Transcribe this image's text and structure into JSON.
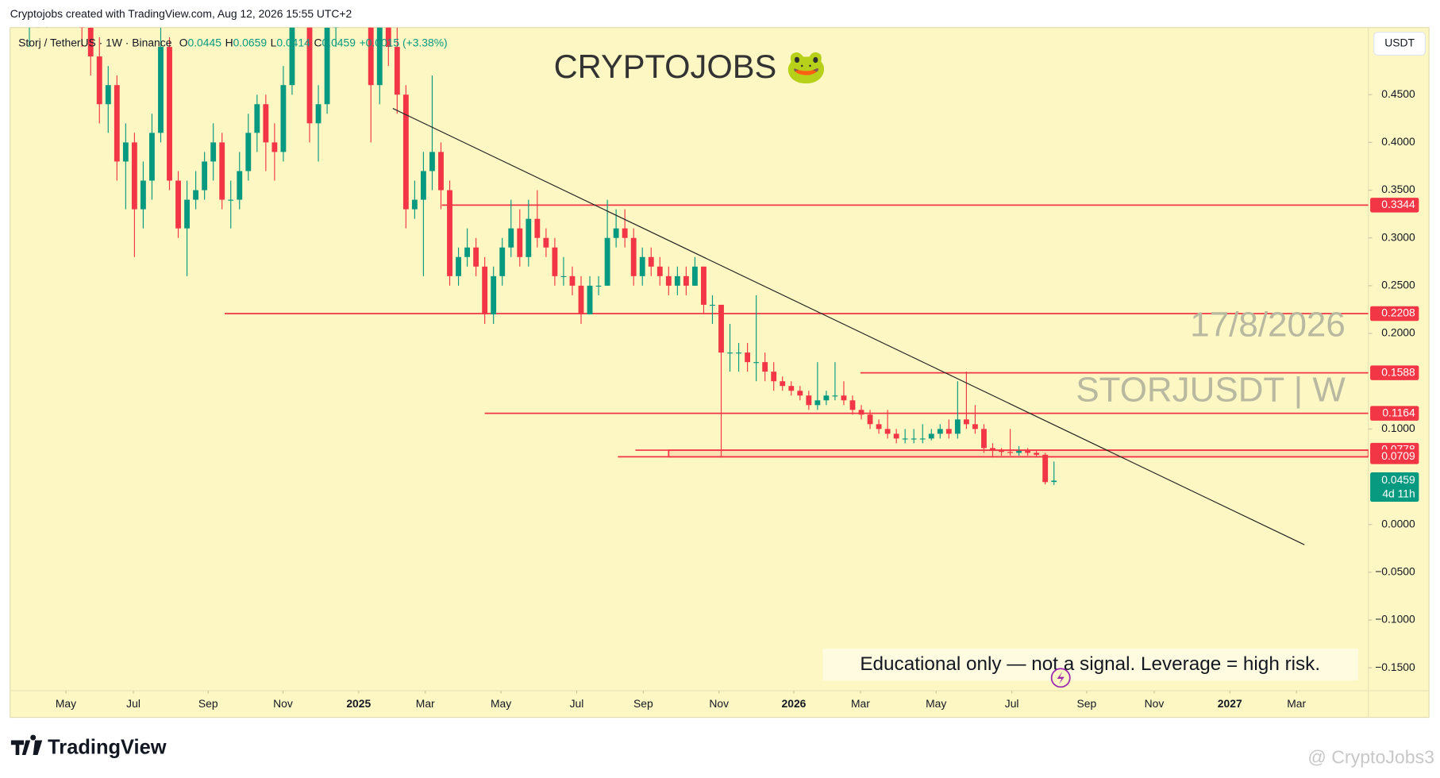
{
  "header": {
    "credit": "Cryptojobs created with TradingView.com, Aug 12, 2026 15:55 UTC+2",
    "symbol": "Storj / TetherUS · 1W · Binance",
    "ohlc": [
      {
        "label": "O",
        "value": "0.0445"
      },
      {
        "label": "H",
        "value": "0.0659"
      },
      {
        "label": "L",
        "value": "0.0414"
      },
      {
        "label": "C",
        "value": "0.0459"
      }
    ],
    "change": "+0.0015 (+3.38%)",
    "currency": "USDT"
  },
  "chart_data": {
    "type": "candlestick",
    "title": "CRYPTOJOBS 🐸",
    "annotations": [
      "17/8/2026",
      "STORJUSDT | W"
    ],
    "note": "Educational only — not a signal. Leverage  = high risk.",
    "up_color": "#089981",
    "down_color": "#f23645",
    "open": [
      0.56,
      0.58,
      0.54,
      0.57,
      0.6,
      0.55,
      0.58,
      0.52,
      0.49,
      0.44,
      0.46,
      0.38,
      0.4,
      0.33,
      0.36,
      0.41,
      0.5,
      0.36,
      0.31,
      0.34,
      0.35,
      0.38,
      0.4,
      0.34,
      0.34,
      0.37,
      0.41,
      0.44,
      0.4,
      0.39,
      0.46,
      0.55,
      0.6,
      0.42,
      0.44,
      0.52,
      0.56,
      0.62,
      0.58,
      0.66,
      0.46,
      0.55,
      0.5,
      0.45,
      0.33,
      0.34,
      0.37,
      0.39,
      0.35,
      0.26,
      0.28,
      0.29,
      0.27,
      0.22,
      0.26,
      0.29,
      0.31,
      0.28,
      0.32,
      0.3,
      0.29,
      0.26,
      0.26,
      0.25,
      0.22,
      0.25,
      0.25,
      0.3,
      0.31,
      0.3,
      0.26,
      0.28,
      0.27,
      0.26,
      0.25,
      0.26,
      0.25,
      0.27,
      0.23,
      0.23,
      0.18,
      0.18,
      0.18,
      0.17,
      0.17,
      0.16,
      0.15,
      0.145,
      0.14,
      0.135,
      0.125,
      0.13,
      0.135,
      0.135,
      0.13,
      0.12,
      0.115,
      0.105,
      0.1,
      0.095,
      0.09,
      0.09,
      0.09,
      0.09,
      0.095,
      0.1,
      0.095,
      0.11,
      0.105,
      0.1,
      0.08,
      0.077,
      0.076,
      0.075,
      0.077,
      0.075,
      0.073,
      0.0445
    ],
    "high": [
      0.62,
      0.6,
      0.59,
      0.63,
      0.61,
      0.6,
      0.59,
      0.54,
      0.51,
      0.48,
      0.47,
      0.42,
      0.41,
      0.38,
      0.43,
      0.52,
      0.51,
      0.37,
      0.36,
      0.37,
      0.39,
      0.42,
      0.41,
      0.36,
      0.39,
      0.43,
      0.45,
      0.45,
      0.42,
      0.48,
      0.57,
      0.66,
      0.62,
      0.46,
      0.54,
      0.59,
      0.66,
      0.64,
      0.7,
      0.67,
      0.57,
      0.58,
      0.52,
      0.46,
      0.36,
      0.39,
      0.47,
      0.4,
      0.36,
      0.29,
      0.31,
      0.3,
      0.28,
      0.27,
      0.3,
      0.34,
      0.33,
      0.34,
      0.35,
      0.31,
      0.3,
      0.28,
      0.27,
      0.26,
      0.26,
      0.26,
      0.34,
      0.33,
      0.33,
      0.31,
      0.29,
      0.29,
      0.28,
      0.27,
      0.27,
      0.27,
      0.28,
      0.27,
      0.24,
      0.23,
      0.21,
      0.19,
      0.19,
      0.24,
      0.18,
      0.17,
      0.155,
      0.15,
      0.145,
      0.14,
      0.17,
      0.14,
      0.17,
      0.15,
      0.135,
      0.125,
      0.12,
      0.11,
      0.12,
      0.1,
      0.1,
      0.1,
      0.105,
      0.1,
      0.105,
      0.11,
      0.15,
      0.16,
      0.125,
      0.105,
      0.085,
      0.08,
      0.1,
      0.082,
      0.08,
      0.078,
      0.075,
      0.0659
    ],
    "low": [
      0.5,
      0.52,
      0.52,
      0.55,
      0.53,
      0.53,
      0.5,
      0.47,
      0.42,
      0.41,
      0.36,
      0.33,
      0.28,
      0.31,
      0.34,
      0.4,
      0.35,
      0.3,
      0.26,
      0.33,
      0.34,
      0.36,
      0.33,
      0.31,
      0.33,
      0.36,
      0.39,
      0.37,
      0.36,
      0.38,
      0.45,
      0.53,
      0.4,
      0.38,
      0.43,
      0.5,
      0.54,
      0.55,
      0.56,
      0.4,
      0.44,
      0.48,
      0.43,
      0.31,
      0.32,
      0.26,
      0.35,
      0.33,
      0.25,
      0.25,
      0.27,
      0.26,
      0.21,
      0.21,
      0.25,
      0.28,
      0.27,
      0.27,
      0.29,
      0.28,
      0.25,
      0.25,
      0.24,
      0.21,
      0.22,
      0.24,
      0.25,
      0.29,
      0.29,
      0.25,
      0.25,
      0.26,
      0.25,
      0.24,
      0.24,
      0.24,
      0.25,
      0.22,
      0.21,
      0.07,
      0.16,
      0.16,
      0.16,
      0.15,
      0.15,
      0.14,
      0.14,
      0.135,
      0.13,
      0.12,
      0.12,
      0.125,
      0.13,
      0.125,
      0.115,
      0.11,
      0.1,
      0.095,
      0.09,
      0.085,
      0.085,
      0.085,
      0.085,
      0.088,
      0.09,
      0.09,
      0.09,
      0.1,
      0.095,
      0.075,
      0.07,
      0.072,
      0.072,
      0.072,
      0.072,
      0.07,
      0.042,
      0.0414
    ],
    "close": [
      0.58,
      0.54,
      0.57,
      0.6,
      0.55,
      0.58,
      0.52,
      0.49,
      0.44,
      0.46,
      0.38,
      0.4,
      0.33,
      0.36,
      0.41,
      0.5,
      0.36,
      0.31,
      0.34,
      0.35,
      0.38,
      0.4,
      0.34,
      0.34,
      0.37,
      0.41,
      0.44,
      0.4,
      0.39,
      0.46,
      0.55,
      0.6,
      0.42,
      0.44,
      0.52,
      0.56,
      0.62,
      0.58,
      0.66,
      0.46,
      0.55,
      0.5,
      0.45,
      0.33,
      0.34,
      0.37,
      0.39,
      0.35,
      0.26,
      0.28,
      0.29,
      0.27,
      0.22,
      0.26,
      0.29,
      0.31,
      0.28,
      0.32,
      0.3,
      0.29,
      0.26,
      0.26,
      0.25,
      0.22,
      0.25,
      0.25,
      0.3,
      0.31,
      0.3,
      0.26,
      0.28,
      0.27,
      0.26,
      0.25,
      0.26,
      0.25,
      0.27,
      0.23,
      0.23,
      0.18,
      0.18,
      0.18,
      0.17,
      0.17,
      0.16,
      0.15,
      0.145,
      0.14,
      0.135,
      0.125,
      0.13,
      0.135,
      0.135,
      0.13,
      0.12,
      0.115,
      0.105,
      0.1,
      0.095,
      0.09,
      0.09,
      0.09,
      0.09,
      0.095,
      0.1,
      0.095,
      0.11,
      0.105,
      0.1,
      0.08,
      0.077,
      0.076,
      0.075,
      0.077,
      0.075,
      0.073,
      0.0444,
      0.0459
    ],
    "last_price": {
      "value": 0.0459,
      "label": "0.0459",
      "countdown": "4d 11h"
    },
    "levels": [
      {
        "value": 0.3344,
        "label": "0.3344",
        "x_from": 47.1
      },
      {
        "value": 0.2208,
        "label": "0.2208",
        "x_from": 22.3
      },
      {
        "value": 0.1588,
        "label": "0.1588",
        "x_from": 94.9
      },
      {
        "value": 0.1164,
        "label": "0.1164",
        "x_from": 52.0
      },
      {
        "value": 0.0778,
        "label": "0.0778",
        "x_from": 69.2
      },
      {
        "value": 0.0709,
        "label": "0.0709",
        "x_from": 67.2
      }
    ],
    "zone": {
      "top": 0.0778,
      "bottom": 0.0709,
      "x_from": 73.0
    },
    "trendline": {
      "x": [
        41.5,
        145.6
      ],
      "y": [
        0.4356,
        -0.0212
      ]
    },
    "xlim": [
      -2.2,
      152.9
    ],
    "ylim": [
      -0.174,
      0.5202
    ],
    "xticks": [
      {
        "value": 4.17,
        "label": "May"
      },
      {
        "value": 11.88,
        "label": "Jul"
      },
      {
        "value": 20.42,
        "label": "Sep"
      },
      {
        "value": 28.96,
        "label": "Nov"
      },
      {
        "value": 37.6,
        "label": "2025"
      },
      {
        "value": 45.21,
        "label": "Mar"
      },
      {
        "value": 53.85,
        "label": "May"
      },
      {
        "value": 62.5,
        "label": "Jul"
      },
      {
        "value": 70.1,
        "label": "Sep"
      },
      {
        "value": 78.75,
        "label": "Nov"
      },
      {
        "value": 87.29,
        "label": "2026"
      },
      {
        "value": 94.9,
        "label": "Mar"
      },
      {
        "value": 103.54,
        "label": "May"
      },
      {
        "value": 112.19,
        "label": "Jul"
      },
      {
        "value": 120.73,
        "label": "Sep"
      },
      {
        "value": 128.44,
        "label": "Nov"
      },
      {
        "value": 137.08,
        "label": "2027"
      },
      {
        "value": 144.69,
        "label": "Mar"
      }
    ],
    "yticks": [
      {
        "value": 0.45,
        "label": "0.4500"
      },
      {
        "value": 0.4,
        "label": "0.4000"
      },
      {
        "value": 0.35,
        "label": "0.3500"
      },
      {
        "value": 0.3,
        "label": "0.3000"
      },
      {
        "value": 0.25,
        "label": "0.2500"
      },
      {
        "value": 0.2,
        "label": "0.2000"
      },
      {
        "value": 0.1,
        "label": "0.1000"
      },
      {
        "value": 0,
        "label": "0.0000"
      },
      {
        "value": -0.05,
        "label": "−0.0500"
      },
      {
        "value": -0.1,
        "label": "−0.1000"
      },
      {
        "value": -0.15,
        "label": "−0.1500"
      }
    ],
    "grid": false
  },
  "footer": {
    "brand": "TradingView",
    "watermark": "@ CryptoJobs3"
  }
}
